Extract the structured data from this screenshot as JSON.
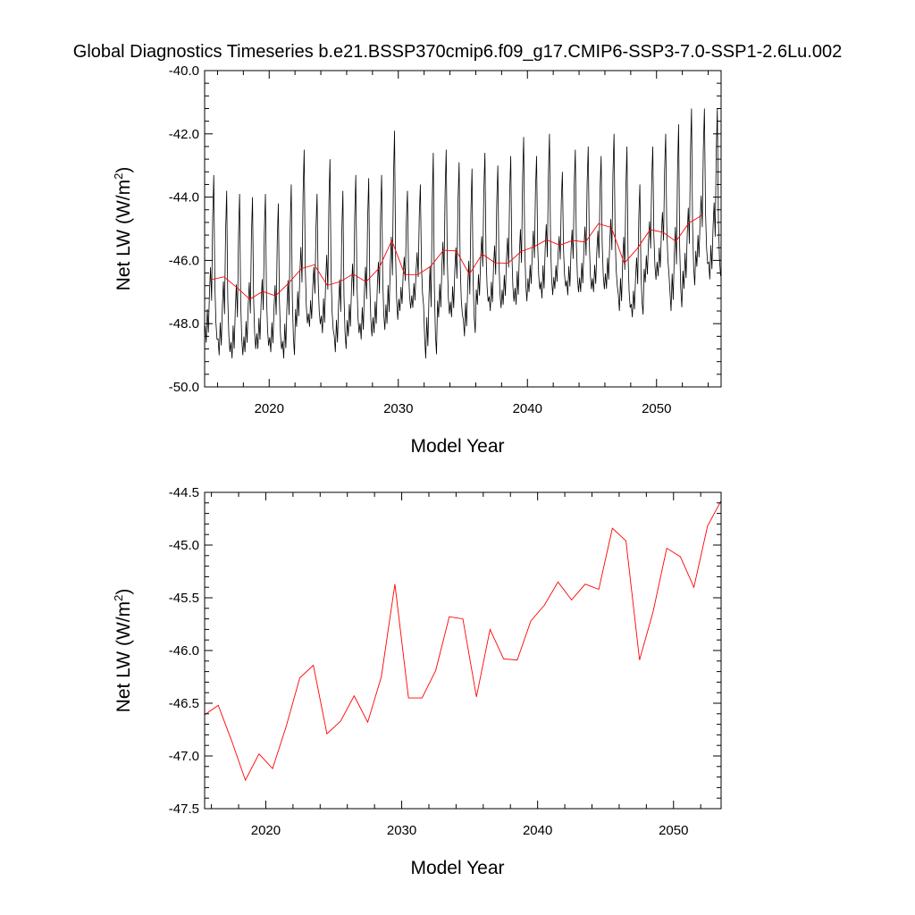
{
  "title": "Global Diagnostics Timeseries b.e21.BSSP370cmip6.f09_g17.CMIP6-SSP3-7.0-SSP1-2.6Lu.002",
  "colors": {
    "monthly": "#000000",
    "annual": "#ff0000"
  },
  "chart_data": [
    {
      "type": "line",
      "xlabel": "Model Year",
      "ylabel_main": "Net LW (W/m",
      "ylabel_sup": "2",
      "ylabel_end": ")",
      "xlim": [
        2015.0,
        2055.0
      ],
      "ylim": [
        -50.0,
        -40.0
      ],
      "xticks": [
        2020,
        2030,
        2040,
        2050
      ],
      "xtick_labels": [
        "2020",
        "2030",
        "2040",
        "2050"
      ],
      "yticks": [
        -50.0,
        -48.0,
        -46.0,
        -44.0,
        -42.0,
        -40.0
      ],
      "ytick_labels": [
        "-50.0",
        "-48.0",
        "-46.0",
        "-44.0",
        "-42.0",
        "-40.0"
      ],
      "series": [
        {
          "kind": "monthly",
          "color": "#000000",
          "start_year": 2015.0,
          "annual_peaks": [
            -43.3,
            -43.8,
            -43.9,
            -44.0,
            -43.9,
            -44.2,
            -43.6,
            -42.5,
            -43.9,
            -42.8,
            -43.8,
            -43.3,
            -43.4,
            -43.3,
            -41.9,
            -43.8,
            -43.6,
            -42.6,
            -42.5,
            -42.9,
            -43.1,
            -42.6,
            -43.0,
            -42.7,
            -42.1,
            -42.7,
            -42.0,
            -43.2,
            -42.5,
            -42.4,
            -42.7,
            -42.0,
            -42.4,
            -43.6,
            -42.4,
            -42.0,
            -41.7,
            -41.2,
            -41.2,
            -41.2
          ],
          "annual_troughs": [
            -48.6,
            -49.0,
            -49.1,
            -48.9,
            -48.8,
            -48.9,
            -49.1,
            -48.1,
            -48.1,
            -48.3,
            -48.9,
            -48.4,
            -48.5,
            -48.3,
            -48.0,
            -47.6,
            -47.5,
            -49.1,
            -47.8,
            -47.8,
            -48.4,
            -47.4,
            -47.6,
            -47.4,
            -47.4,
            -47.0,
            -47.2,
            -46.9,
            -47.1,
            -47.0,
            -47.0,
            -46.9,
            -47.6,
            -47.8,
            -46.7,
            -46.5,
            -47.6,
            -46.9,
            -46.2,
            -46.6
          ]
        },
        {
          "kind": "annual",
          "color": "#ff0000",
          "x": [
            2015.5,
            2016.5,
            2017.5,
            2018.5,
            2019.5,
            2020.5,
            2021.5,
            2022.5,
            2023.5,
            2024.5,
            2025.5,
            2026.5,
            2027.5,
            2028.5,
            2029.5,
            2030.5,
            2031.5,
            2032.5,
            2033.5,
            2034.5,
            2035.5,
            2036.5,
            2037.5,
            2038.5,
            2039.5,
            2040.5,
            2041.5,
            2042.5,
            2043.5,
            2044.5,
            2045.5,
            2046.5,
            2047.5,
            2048.5,
            2049.5,
            2050.5,
            2051.5,
            2052.5,
            2053.5
          ],
          "y": [
            -46.61,
            -46.52,
            -46.86,
            -47.23,
            -46.98,
            -47.12,
            -46.72,
            -46.26,
            -46.14,
            -46.79,
            -46.67,
            -46.43,
            -46.68,
            -46.25,
            -45.37,
            -46.45,
            -46.45,
            -46.19,
            -45.68,
            -45.7,
            -46.44,
            -45.8,
            -46.08,
            -46.09,
            -45.72,
            -45.57,
            -45.35,
            -45.52,
            -45.37,
            -45.42,
            -44.84,
            -44.96,
            -46.09,
            -45.63,
            -45.03,
            -45.11,
            -45.4,
            -44.82,
            -44.58
          ]
        }
      ]
    },
    {
      "type": "line",
      "xlabel": "Model Year",
      "ylabel_main": "Net LW (W/m",
      "ylabel_sup": "2",
      "ylabel_end": ")",
      "xlim": [
        2015.5,
        2053.5
      ],
      "ylim": [
        -47.5,
        -44.5
      ],
      "xticks": [
        2020,
        2030,
        2040,
        2050
      ],
      "xtick_labels": [
        "2020",
        "2030",
        "2040",
        "2050"
      ],
      "yticks": [
        -47.5,
        -47.0,
        -46.5,
        -46.0,
        -45.5,
        -45.0,
        -44.5
      ],
      "ytick_labels": [
        "-47.5",
        "-47.0",
        "-46.5",
        "-46.0",
        "-45.5",
        "-45.0",
        "-44.5"
      ],
      "series": [
        {
          "kind": "annual",
          "color": "#ff0000",
          "x": [
            2015.5,
            2016.5,
            2017.5,
            2018.5,
            2019.5,
            2020.5,
            2021.5,
            2022.5,
            2023.5,
            2024.5,
            2025.5,
            2026.5,
            2027.5,
            2028.5,
            2029.5,
            2030.5,
            2031.5,
            2032.5,
            2033.5,
            2034.5,
            2035.5,
            2036.5,
            2037.5,
            2038.5,
            2039.5,
            2040.5,
            2041.5,
            2042.5,
            2043.5,
            2044.5,
            2045.5,
            2046.5,
            2047.5,
            2048.5,
            2049.5,
            2050.5,
            2051.5,
            2052.5,
            2053.5
          ],
          "y": [
            -46.61,
            -46.52,
            -46.86,
            -47.23,
            -46.98,
            -47.12,
            -46.72,
            -46.26,
            -46.14,
            -46.79,
            -46.67,
            -46.43,
            -46.68,
            -46.25,
            -45.37,
            -46.45,
            -46.45,
            -46.19,
            -45.68,
            -45.7,
            -46.44,
            -45.8,
            -46.08,
            -46.09,
            -45.72,
            -45.57,
            -45.35,
            -45.52,
            -45.37,
            -45.42,
            -44.84,
            -44.96,
            -46.09,
            -45.63,
            -45.03,
            -45.11,
            -45.4,
            -44.82,
            -44.58
          ]
        }
      ]
    }
  ]
}
